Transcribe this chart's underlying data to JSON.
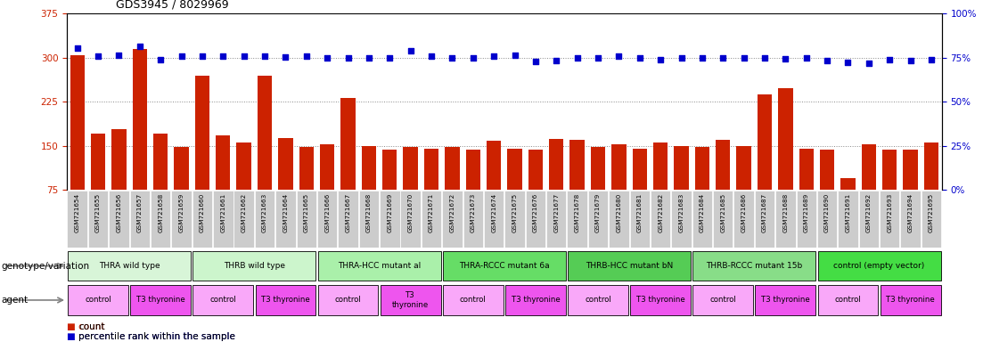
{
  "title": "GDS3945 / 8029969",
  "samples": [
    "GSM721654",
    "GSM721655",
    "GSM721656",
    "GSM721657",
    "GSM721658",
    "GSM721659",
    "GSM721660",
    "GSM721661",
    "GSM721662",
    "GSM721663",
    "GSM721664",
    "GSM721665",
    "GSM721666",
    "GSM721667",
    "GSM721668",
    "GSM721669",
    "GSM721670",
    "GSM721671",
    "GSM721672",
    "GSM721673",
    "GSM721674",
    "GSM721675",
    "GSM721676",
    "GSM721677",
    "GSM721678",
    "GSM721679",
    "GSM721680",
    "GSM721681",
    "GSM721682",
    "GSM721683",
    "GSM721684",
    "GSM721685",
    "GSM721686",
    "GSM721687",
    "GSM721688",
    "GSM721689",
    "GSM721690",
    "GSM721691",
    "GSM721692",
    "GSM721693",
    "GSM721694",
    "GSM721695"
  ],
  "bar_values": [
    305,
    170,
    178,
    315,
    170,
    148,
    270,
    168,
    155,
    270,
    163,
    148,
    153,
    232,
    150,
    143,
    148,
    145,
    148,
    143,
    158,
    145,
    143,
    162,
    160,
    148,
    153,
    145,
    155,
    150,
    148,
    160,
    150,
    238,
    248,
    145,
    143,
    95,
    153,
    143,
    143,
    155
  ],
  "dot_values_left_scale": [
    317,
    303,
    305,
    320,
    297,
    303,
    303,
    302,
    303,
    303,
    301,
    303,
    300,
    300,
    300,
    300,
    312,
    302,
    300,
    300,
    303,
    305,
    294,
    295,
    299,
    300,
    302,
    299,
    297,
    300,
    299,
    299,
    300,
    300,
    298,
    300,
    295,
    292,
    291,
    297,
    295,
    297
  ],
  "ylim_left": [
    75,
    375
  ],
  "yticks_left": [
    75,
    150,
    225,
    300,
    375
  ],
  "ylim_right": [
    0,
    100
  ],
  "yticks_right": [
    0,
    25,
    50,
    75,
    100
  ],
  "bar_color": "#cc2200",
  "dot_color": "#0000cc",
  "genotype_groups": [
    {
      "label": "THRA wild type",
      "start": 0,
      "end": 5,
      "color": "#d8f5d8"
    },
    {
      "label": "THRB wild type",
      "start": 6,
      "end": 11,
      "color": "#ccf5cc"
    },
    {
      "label": "THRA-HCC mutant al",
      "start": 12,
      "end": 17,
      "color": "#aaf0aa"
    },
    {
      "label": "THRA-RCCC mutant 6a",
      "start": 18,
      "end": 23,
      "color": "#66dd66"
    },
    {
      "label": "THRB-HCC mutant bN",
      "start": 24,
      "end": 29,
      "color": "#55cc55"
    },
    {
      "label": "THRB-RCCC mutant 15b",
      "start": 30,
      "end": 35,
      "color": "#88dd88"
    },
    {
      "label": "control (empty vector)",
      "start": 36,
      "end": 41,
      "color": "#44dd44"
    }
  ],
  "agent_groups": [
    {
      "label": "control",
      "start": 0,
      "end": 2,
      "color": "#f9a8f9"
    },
    {
      "label": "T3 thyronine",
      "start": 3,
      "end": 5,
      "color": "#ee55ee"
    },
    {
      "label": "control",
      "start": 6,
      "end": 8,
      "color": "#f9a8f9"
    },
    {
      "label": "T3 thyronine",
      "start": 9,
      "end": 11,
      "color": "#ee55ee"
    },
    {
      "label": "control",
      "start": 12,
      "end": 14,
      "color": "#f9a8f9"
    },
    {
      "label": "T3\nthyronine",
      "start": 15,
      "end": 17,
      "color": "#ee55ee"
    },
    {
      "label": "control",
      "start": 18,
      "end": 20,
      "color": "#f9a8f9"
    },
    {
      "label": "T3 thyronine",
      "start": 21,
      "end": 23,
      "color": "#ee55ee"
    },
    {
      "label": "control",
      "start": 24,
      "end": 26,
      "color": "#f9a8f9"
    },
    {
      "label": "T3 thyronine",
      "start": 27,
      "end": 29,
      "color": "#ee55ee"
    },
    {
      "label": "control",
      "start": 30,
      "end": 32,
      "color": "#f9a8f9"
    },
    {
      "label": "T3 thyronine",
      "start": 33,
      "end": 35,
      "color": "#ee55ee"
    },
    {
      "label": "control",
      "start": 36,
      "end": 38,
      "color": "#f9a8f9"
    },
    {
      "label": "T3 thyronine",
      "start": 39,
      "end": 41,
      "color": "#ee55ee"
    }
  ],
  "tick_label_bg": "#cccccc",
  "grid_color": "#888888",
  "ylabel_left_color": "#cc2200",
  "ylabel_right_color": "#0000cc"
}
